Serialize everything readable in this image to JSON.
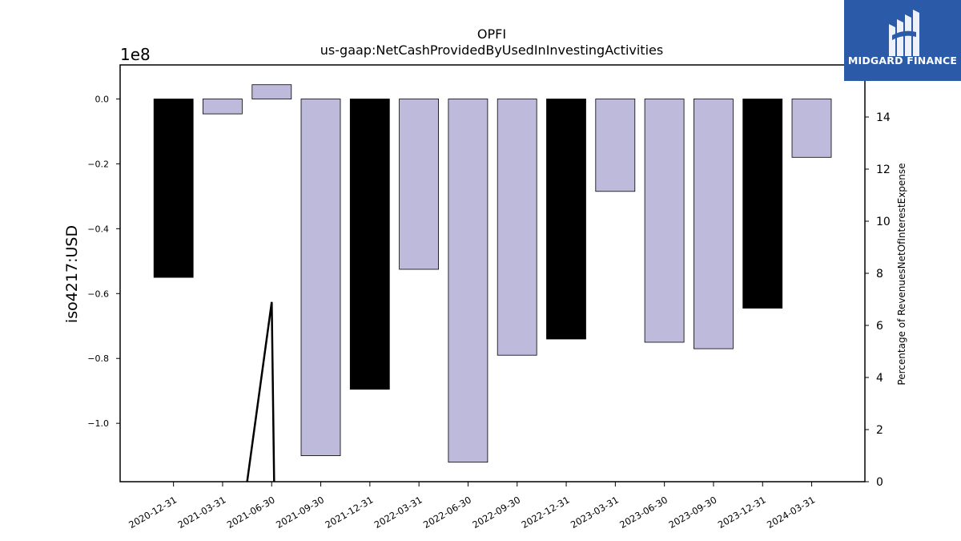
{
  "chart_data": {
    "type": "bar",
    "title": "OPFI",
    "subtitle": "us-gaap:NetCashProvidedByUsedInInvestingActivities",
    "ylabel": "iso4217:USD",
    "y2label": "Percentage of RevenuesNetOfInterestExpense",
    "y_offset_text": "1e8",
    "categories": [
      "2020-12-31",
      "2021-03-31",
      "2021-06-30",
      "2021-09-30",
      "2021-12-31",
      "2022-03-31",
      "2022-06-30",
      "2022-09-30",
      "2022-12-31",
      "2023-03-31",
      "2023-06-30",
      "2023-09-30",
      "2023-12-31",
      "2024-03-31"
    ],
    "values": [
      -55000000,
      -4600000,
      4400000,
      -110000000,
      -89500000,
      -52500000,
      -112000000,
      -79000000,
      -74000000,
      -28500000,
      -75000000,
      -77000000,
      -64500000,
      -18000000
    ],
    "bar_colors": [
      "#000000",
      "#bdbadb",
      "#bdbadb",
      "#bdbadb",
      "#000000",
      "#bdbadb",
      "#bdbadb",
      "#bdbadb",
      "#000000",
      "#bdbadb",
      "#bdbadb",
      "#bdbadb",
      "#000000",
      "#bdbadb"
    ],
    "ylim": [
      -118000000,
      10500000
    ],
    "yticks": [
      0,
      -20000000,
      -40000000,
      -60000000,
      -80000000,
      -100000000
    ],
    "ytick_labels": [
      "0.0",
      "−0.2",
      "−0.4",
      "−0.6",
      "−0.8",
      "−1.0"
    ],
    "y2lim": [
      0,
      16
    ],
    "y2ticks": [
      0,
      2,
      4,
      6,
      8,
      10,
      12,
      14
    ],
    "y2tick_labels": [
      "0",
      "2",
      "4",
      "6",
      "8",
      "10",
      "12",
      "14"
    ],
    "secondary_line": {
      "points": [
        [
          1.5,
          0
        ],
        [
          2.0,
          6.9
        ],
        [
          2.05,
          0
        ]
      ],
      "color": "#000000"
    }
  },
  "logo": {
    "text": "MIDGARD FINANCE",
    "background": "#2a5aa8"
  }
}
